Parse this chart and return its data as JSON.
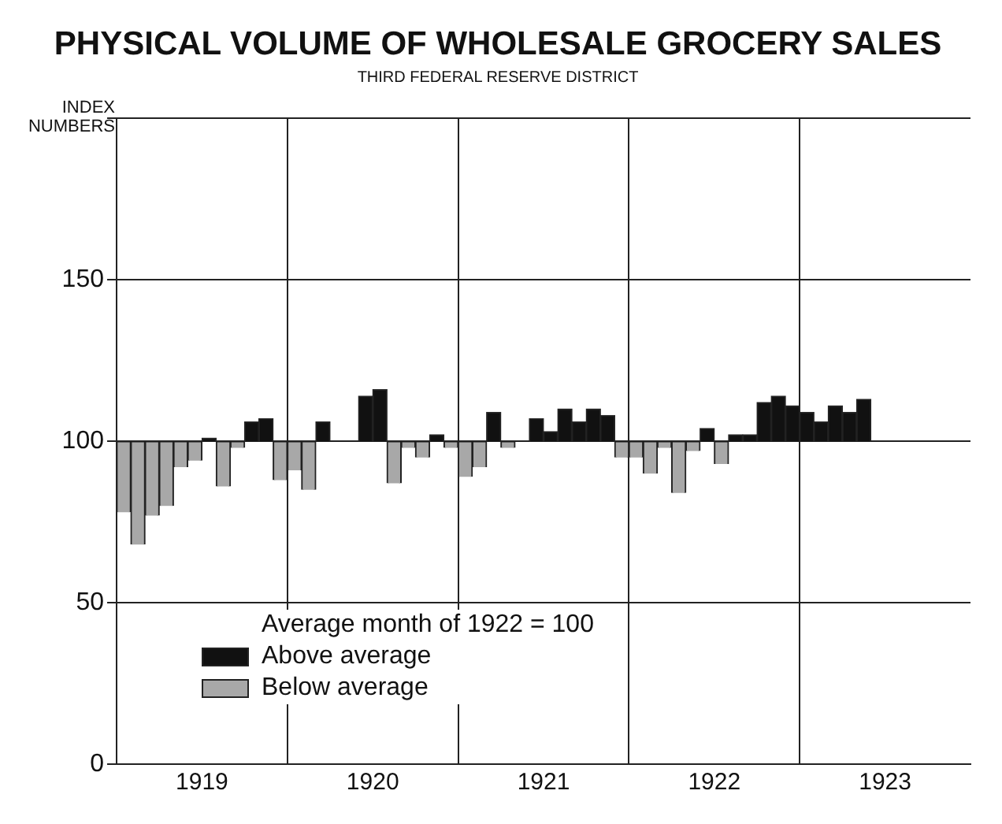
{
  "chart_data": {
    "type": "bar",
    "title": "PHYSICAL VOLUME OF WHOLESALE GROCERY SALES",
    "subtitle": "THIRD FEDERAL RESERVE DISTRICT",
    "ylabel": "INDEX NUMBERS",
    "legend_title": "Average month of 1922 = 100",
    "x": [
      "1919-01",
      "1919-02",
      "1919-03",
      "1919-04",
      "1919-05",
      "1919-06",
      "1919-07",
      "1919-08",
      "1919-09",
      "1919-10",
      "1919-11",
      "1919-12",
      "1920-01",
      "1920-02",
      "1920-03",
      "1920-04",
      "1920-05",
      "1920-06",
      "1920-07",
      "1920-08",
      "1920-09",
      "1920-10",
      "1920-11",
      "1920-12",
      "1921-01",
      "1921-02",
      "1921-03",
      "1921-04",
      "1921-05",
      "1921-06",
      "1921-07",
      "1921-08",
      "1921-09",
      "1921-10",
      "1921-11",
      "1921-12",
      "1922-01",
      "1922-02",
      "1922-03",
      "1922-04",
      "1922-05",
      "1922-06",
      "1922-07",
      "1922-08",
      "1922-09",
      "1922-10",
      "1922-11",
      "1922-12",
      "1923-01",
      "1923-02",
      "1923-03",
      "1923-04",
      "1923-05"
    ],
    "series": [
      {
        "name": "Above average",
        "color": "#111111",
        "base": [
          null,
          null,
          null,
          null,
          null,
          null,
          100,
          null,
          null,
          100,
          100,
          null,
          null,
          null,
          100,
          100,
          100,
          100,
          100,
          null,
          null,
          null,
          100,
          null,
          null,
          null,
          100,
          null,
          100,
          100,
          100,
          100,
          100,
          100,
          100,
          null,
          null,
          null,
          null,
          null,
          null,
          100,
          null,
          100,
          100,
          100,
          100,
          100,
          100,
          100,
          100,
          100,
          100
        ],
        "values": [
          null,
          null,
          null,
          null,
          null,
          null,
          1,
          null,
          null,
          6,
          7,
          null,
          null,
          null,
          6,
          0,
          0,
          14,
          16,
          null,
          null,
          null,
          2,
          null,
          null,
          null,
          9,
          null,
          0,
          7,
          3,
          10,
          6,
          10,
          8,
          null,
          null,
          null,
          null,
          null,
          null,
          4,
          null,
          2,
          2,
          12,
          14,
          11,
          9,
          6,
          11,
          9,
          13
        ]
      },
      {
        "name": "Below average",
        "color": "#a8a8a8",
        "base": [
          100,
          100,
          100,
          100,
          100,
          100,
          null,
          100,
          100,
          null,
          null,
          100,
          100,
          100,
          null,
          null,
          null,
          null,
          null,
          100,
          100,
          100,
          null,
          100,
          100,
          100,
          null,
          100,
          null,
          null,
          null,
          null,
          null,
          null,
          null,
          100,
          100,
          100,
          100,
          100,
          100,
          null,
          100,
          null,
          null,
          null,
          null,
          null,
          null,
          null,
          null,
          null,
          null
        ],
        "values": [
          -22,
          -32,
          -23,
          -20,
          -8,
          -6,
          null,
          -14,
          -2,
          null,
          null,
          -12,
          -9,
          -15,
          null,
          null,
          null,
          null,
          null,
          -13,
          -2,
          -5,
          null,
          -2,
          -11,
          -8,
          null,
          -2,
          null,
          null,
          null,
          null,
          null,
          null,
          null,
          -5,
          -5,
          -10,
          -2,
          -16,
          -3,
          null,
          -7,
          null,
          null,
          null,
          null,
          null,
          null,
          null,
          null,
          null,
          null
        ]
      }
    ],
    "xlim": [
      "1919-01",
      "1924-01"
    ],
    "xticks": [
      {
        "value": "1919-07",
        "label": "1919"
      },
      {
        "value": "1920-01",
        "label": null
      },
      {
        "value": "1920-07",
        "label": "1920"
      },
      {
        "value": "1921-01",
        "label": null
      },
      {
        "value": "1921-07",
        "label": "1921"
      },
      {
        "value": "1922-01",
        "label": null
      },
      {
        "value": "1922-07",
        "label": "1922"
      },
      {
        "value": "1923-01",
        "label": null
      },
      {
        "value": "1923-07",
        "label": "1923"
      }
    ],
    "ylim": [
      0,
      200
    ],
    "yticks": [
      0,
      50,
      100,
      150,
      {
        "value": 200,
        "label": null
      }
    ],
    "grid": true,
    "legend": "bottom left"
  }
}
